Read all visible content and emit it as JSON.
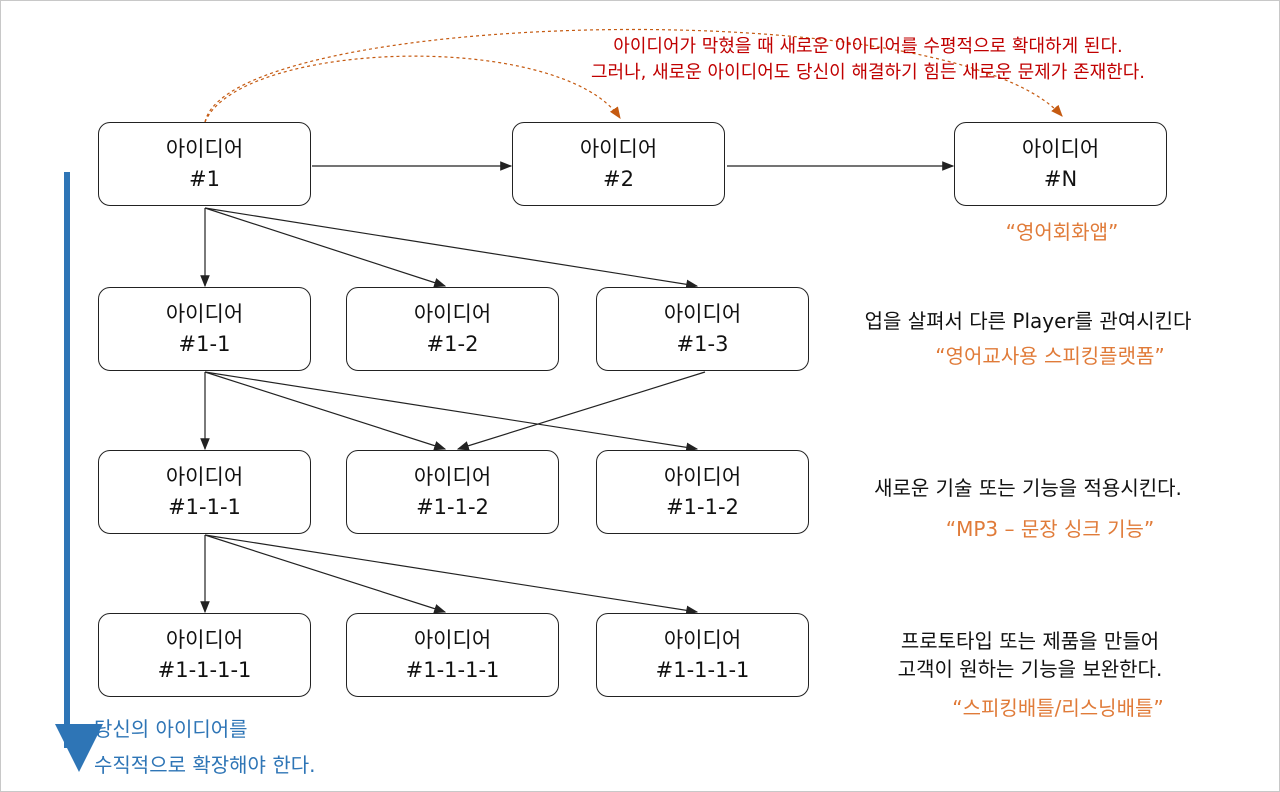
{
  "colors": {
    "red_note": "#c00000",
    "example": "#e07b39",
    "vertical": "#2e75b6",
    "dashed_arrow": "#c55a11"
  },
  "top_note": [
    "아이디어가 막혔을 때 새로운 아이디어를 수평적으로 확대하게 된다.",
    "그러나, 새로운 아이디어도 당신이 해결하기 힘든 새로운 문제가 존재한다."
  ],
  "boxes": {
    "r1": [
      {
        "a": "아이디어",
        "b": "#1"
      },
      {
        "a": "아이디어",
        "b": "#2"
      },
      {
        "a": "아이디어",
        "b": "#N"
      }
    ],
    "r2": [
      {
        "a": "아이디어",
        "b": "#1-1"
      },
      {
        "a": "아이디어",
        "b": "#1-2"
      },
      {
        "a": "아이디어",
        "b": "#1-3"
      }
    ],
    "r3": [
      {
        "a": "아이디어",
        "b": "#1-1-1"
      },
      {
        "a": "아이디어",
        "b": "#1-1-2"
      },
      {
        "a": "아이디어",
        "b": "#1-1-2"
      }
    ],
    "r4": [
      {
        "a": "아이디어",
        "b": "#1-1-1-1"
      },
      {
        "a": "아이디어",
        "b": "#1-1-1-1"
      },
      {
        "a": "아이디어",
        "b": "#1-1-1-1"
      }
    ]
  },
  "annotations": {
    "n_example": "“영어회화앱”",
    "r2_text": "업을 살펴서 다른 Player를 관여시킨다",
    "r2_example": "“영어교사용 스피킹플랫폼”",
    "r3_text": "새로운 기술 또는 기능을 적용시킨다.",
    "r3_example": "“MP3 – 문장 싱크 기능”",
    "r4_text1": "프로토타입 또는 제품을 만들어",
    "r4_text2": "고객이 원하는 기능을 보완한다.",
    "r4_example": "“스피킹배틀/리스닝배틀”"
  },
  "vertical_note": [
    "당신의 아이디어를",
    "수직적으로 확장해야 한다."
  ]
}
